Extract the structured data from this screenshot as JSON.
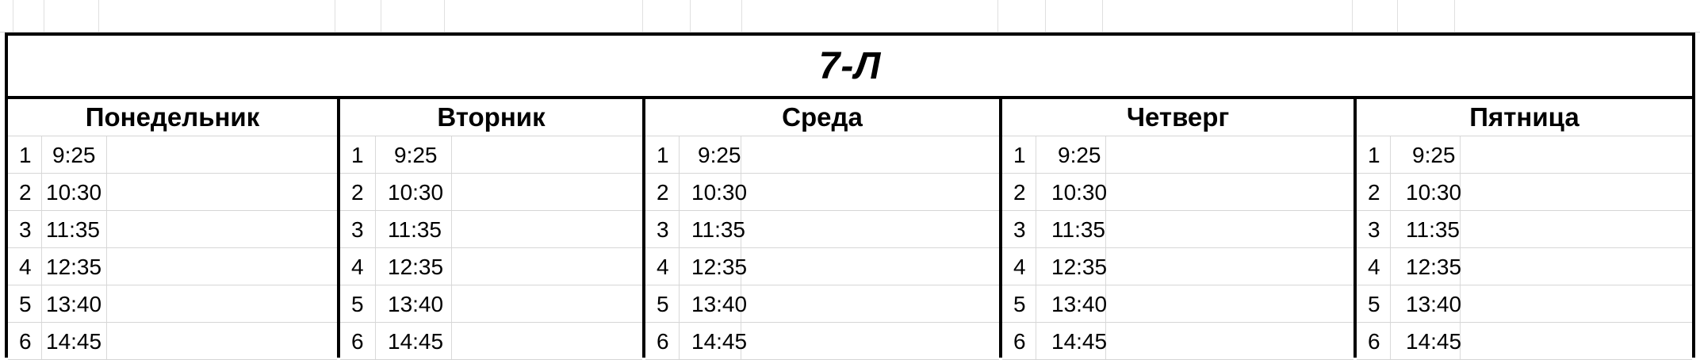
{
  "sheet": {
    "title": "7-Л",
    "days": [
      {
        "name": "Понедельник",
        "rows": [
          {
            "n": "1",
            "t": "9:25"
          },
          {
            "n": "2",
            "t": "10:30"
          },
          {
            "n": "3",
            "t": "11:35"
          },
          {
            "n": "4",
            "t": "12:35"
          },
          {
            "n": "5",
            "t": "13:40"
          },
          {
            "n": "6",
            "t": "14:45"
          }
        ]
      },
      {
        "name": "Вторник",
        "rows": [
          {
            "n": "1",
            "t": "9:25"
          },
          {
            "n": "2",
            "t": "10:30"
          },
          {
            "n": "3",
            "t": "11:35"
          },
          {
            "n": "4",
            "t": "12:35"
          },
          {
            "n": "5",
            "t": "13:40"
          },
          {
            "n": "6",
            "t": "14:45"
          }
        ]
      },
      {
        "name": "Среда",
        "rows": [
          {
            "n": "1",
            "t": "9:25"
          },
          {
            "n": "2",
            "t": "10:30"
          },
          {
            "n": "3",
            "t": "11:35"
          },
          {
            "n": "4",
            "t": "12:35"
          },
          {
            "n": "5",
            "t": "13:40"
          },
          {
            "n": "6",
            "t": "14:45"
          }
        ]
      },
      {
        "name": "Четверг",
        "rows": [
          {
            "n": "1",
            "t": "9:25"
          },
          {
            "n": "2",
            "t": "10:30"
          },
          {
            "n": "3",
            "t": "11:35"
          },
          {
            "n": "4",
            "t": "12:35"
          },
          {
            "n": "5",
            "t": "13:40"
          },
          {
            "n": "6",
            "t": "14:45"
          }
        ]
      },
      {
        "name": "Пятница",
        "rows": [
          {
            "n": "1",
            "t": "9:25"
          },
          {
            "n": "2",
            "t": "10:30"
          },
          {
            "n": "3",
            "t": "11:35"
          },
          {
            "n": "4",
            "t": "12:35"
          },
          {
            "n": "5",
            "t": "13:40"
          },
          {
            "n": "6",
            "t": "14:45"
          }
        ]
      }
    ]
  }
}
